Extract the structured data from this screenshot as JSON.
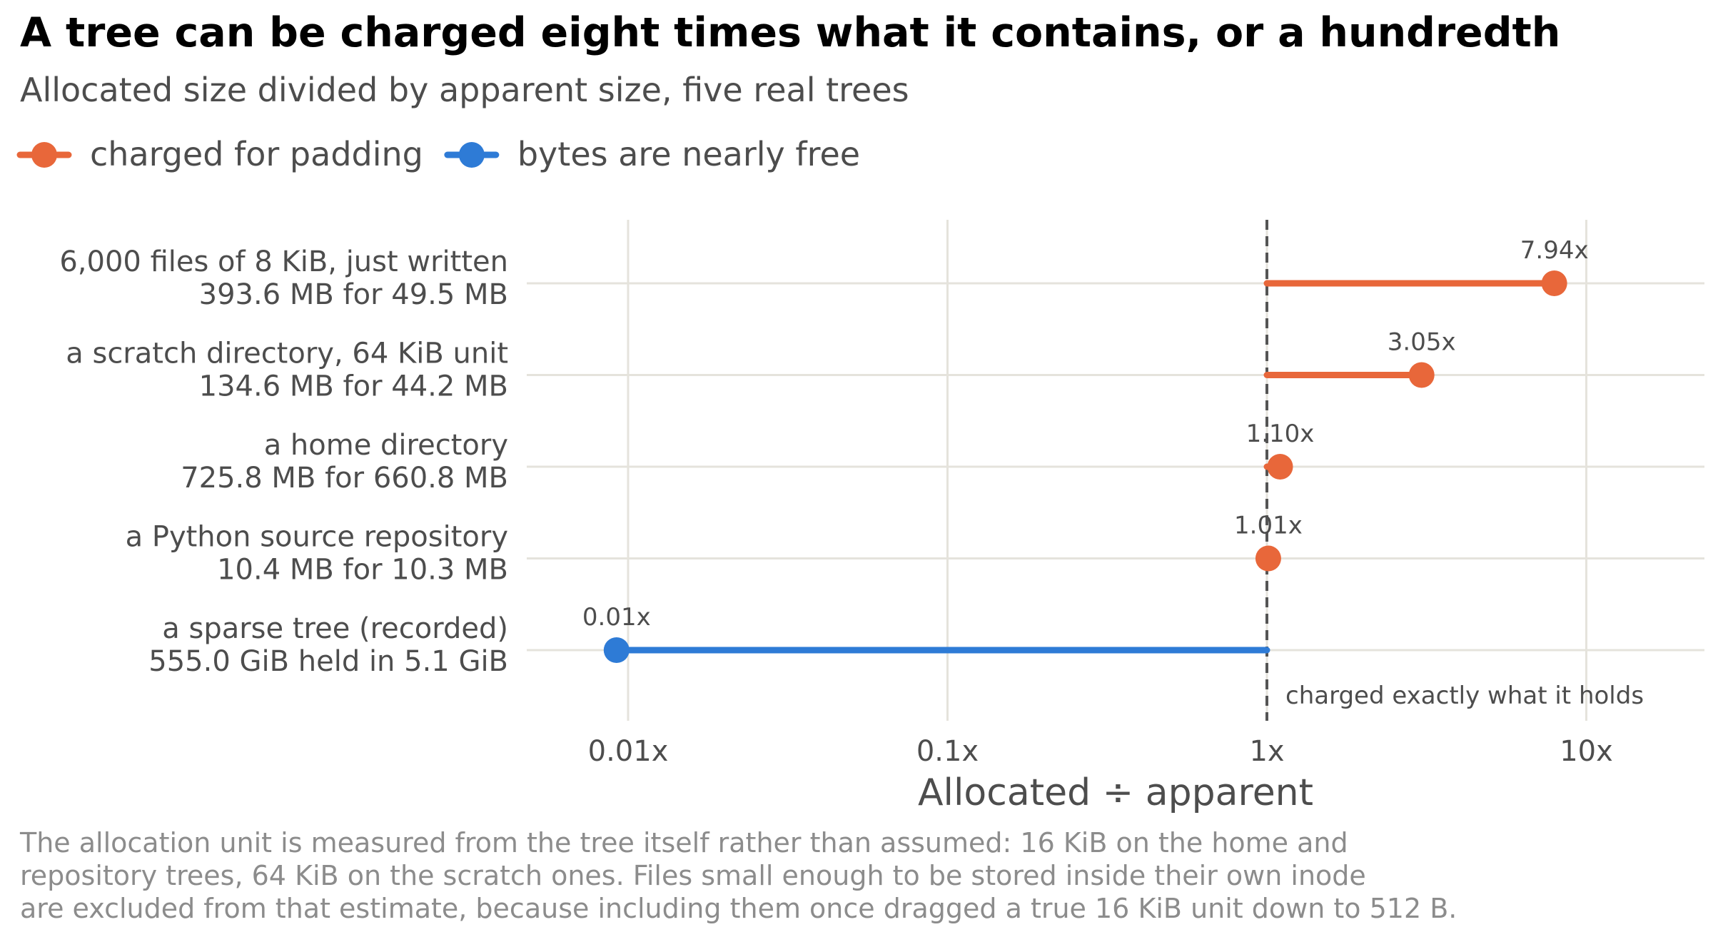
{
  "title": "A tree can be charged eight times what it contains, or a hundredth",
  "subtitle": "Allocated size divided by apparent size, five real trees",
  "legend": [
    {
      "label": "charged for padding",
      "color": "#e8673a"
    },
    {
      "label": "bytes are nearly free",
      "color": "#2e7bd6"
    }
  ],
  "chart_data": {
    "type": "lollipop",
    "scale": "log",
    "baseline": 1,
    "xlim": [
      0.0063,
      21
    ],
    "xticks": [
      0.01,
      0.1,
      1,
      10
    ],
    "xtick_labels": [
      "0.01x",
      "0.1x",
      "1x",
      "10x"
    ],
    "xlabel": "Allocated ÷ apparent",
    "reference_label": "charged exactly what it holds",
    "grid": true,
    "legend_position": "top-left",
    "rows": [
      {
        "label": [
          "6,000 files of 8 KiB, just written",
          "393.6 MB for 49.5 MB"
        ],
        "value": 7.94,
        "value_label": "7.94x",
        "group": 0
      },
      {
        "label": [
          "a scratch directory, 64 KiB unit",
          "134.6 MB for 44.2 MB"
        ],
        "value": 3.05,
        "value_label": "3.05x",
        "group": 0
      },
      {
        "label": [
          "a home directory",
          "725.8 MB for 660.8 MB"
        ],
        "value": 1.1,
        "value_label": "1.10x",
        "group": 0
      },
      {
        "label": [
          "a Python source repository",
          "10.4 MB for 10.3 MB"
        ],
        "value": 1.01,
        "value_label": "1.01x",
        "group": 0
      },
      {
        "label": [
          "a sparse tree (recorded)",
          "555.0 GiB held in 5.1 GiB"
        ],
        "value": 0.0092,
        "value_label": "0.01x",
        "group": 1
      }
    ]
  },
  "caption": [
    "The allocation unit is measured from the tree itself rather than assumed: 16 KiB on the home and",
    "repository trees, 64 KiB on the scratch ones. Files small enough to be stored inside their own inode",
    "are excluded from that estimate, because including them once dragged a true 16 KiB unit down to 512 B."
  ]
}
